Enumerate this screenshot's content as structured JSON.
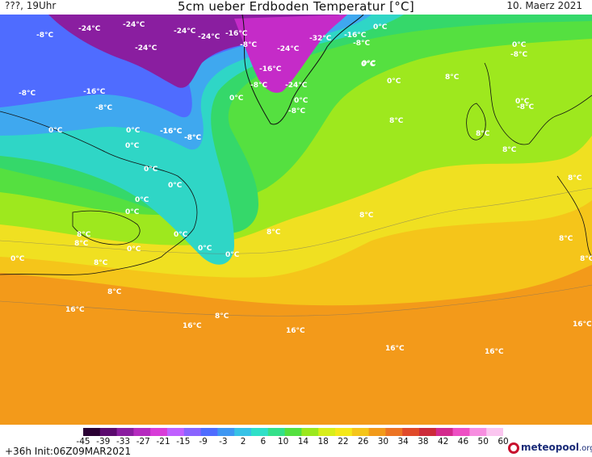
{
  "header": {
    "left": "???, 19Uhr",
    "title": "5cm ueber Erdboden Temperatur [°C]",
    "date": "10. Maerz 2021"
  },
  "footer": {
    "lead_init": "+36h  Init:06Z09MAR2021",
    "logo_name": "meteopool",
    "logo_ext": ".org"
  },
  "colorbar": {
    "ticks": [
      "-45",
      "-39",
      "-33",
      "-27",
      "-21",
      "-15",
      "-9",
      "-3",
      "2",
      "6",
      "10",
      "14",
      "18",
      "22",
      "26",
      "30",
      "34",
      "38",
      "42",
      "46",
      "50",
      "60"
    ],
    "colors": [
      "#2a0033",
      "#5b0a6e",
      "#8a1ea0",
      "#b52bbf",
      "#d83cd8",
      "#c060ff",
      "#8a64ff",
      "#4f6cff",
      "#3f97f2",
      "#37c2e6",
      "#2fe0c8",
      "#35e08a",
      "#55e040",
      "#9be81e",
      "#d8ee1a",
      "#f5e81a",
      "#f5c51a",
      "#f29a1a",
      "#ec7424",
      "#e04a2a",
      "#cc2b3a",
      "#d32a8d",
      "#ee4fc4",
      "#f78ee0",
      "#fbc6f0"
    ]
  },
  "map": {
    "labels": [
      {
        "t": "-8°C"
      },
      {
        "t": "-24°C"
      },
      {
        "t": "-24°C"
      },
      {
        "t": "-24°C"
      },
      {
        "t": "-24°C"
      },
      {
        "t": "-16°C"
      },
      {
        "t": "-24°C"
      },
      {
        "t": "0°C"
      },
      {
        "t": "-32°C"
      },
      {
        "t": "-16°C"
      },
      {
        "t": "-8°C"
      },
      {
        "t": "-8°C"
      },
      {
        "t": "0°C"
      },
      {
        "t": "0°C"
      },
      {
        "t": "-8°C"
      },
      {
        "t": "-24°C"
      },
      {
        "t": "-16°C"
      },
      {
        "t": "-8°C"
      },
      {
        "t": "-24°C"
      },
      {
        "t": "0°C"
      },
      {
        "t": "-8°C"
      },
      {
        "t": "0°C"
      },
      {
        "t": "-16°C"
      },
      {
        "t": "-16°C"
      },
      {
        "t": "-8°C"
      },
      {
        "t": "-8°C"
      },
      {
        "t": "0°C"
      },
      {
        "t": "0°C"
      },
      {
        "t": "0°C"
      },
      {
        "t": "8°C"
      },
      {
        "t": "-8°C"
      },
      {
        "t": "0°C"
      },
      {
        "t": "-8°C"
      },
      {
        "t": "0°C"
      },
      {
        "t": "0°C"
      },
      {
        "t": "-16°C"
      },
      {
        "t": "-8°C"
      },
      {
        "t": "0°C"
      },
      {
        "t": "8°C"
      },
      {
        "t": "8°C"
      },
      {
        "t": "8°C"
      },
      {
        "t": "8°C"
      },
      {
        "t": "0°C"
      },
      {
        "t": "0°C"
      },
      {
        "t": "0°C"
      },
      {
        "t": "0°C"
      },
      {
        "t": "8°C"
      },
      {
        "t": "8°C"
      },
      {
        "t": "8°C"
      },
      {
        "t": "0°C"
      },
      {
        "t": "8°C"
      },
      {
        "t": "0°C"
      },
      {
        "t": "0°C"
      },
      {
        "t": "0°C"
      },
      {
        "t": "8°C"
      },
      {
        "t": "8°C"
      },
      {
        "t": "8°C"
      },
      {
        "t": "8°C"
      },
      {
        "t": "16°C"
      },
      {
        "t": "8°C"
      },
      {
        "t": "16°C"
      },
      {
        "t": "8°C"
      },
      {
        "t": "16°C"
      },
      {
        "t": "16°C"
      },
      {
        "t": "16°C"
      },
      {
        "t": "16°C"
      },
      {
        "t": "16°C"
      },
      {
        "t": "16°C"
      }
    ]
  }
}
